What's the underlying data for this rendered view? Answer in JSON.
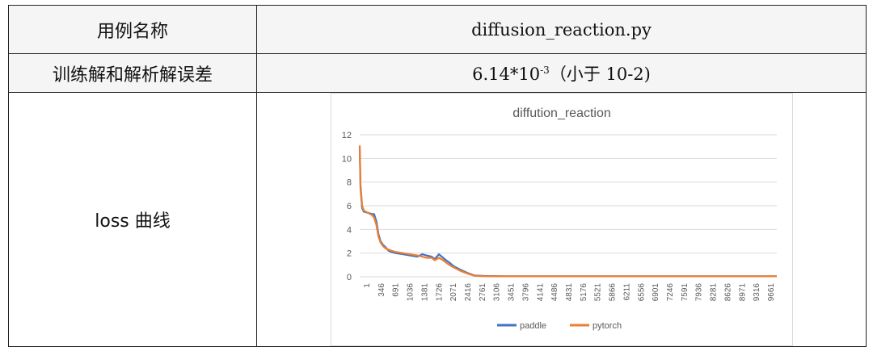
{
  "table": {
    "row1": {
      "label": "用例名称",
      "value": "diffusion_reaction.py"
    },
    "row2": {
      "label": "训练解和解析解误差",
      "value_base": "6.14*10",
      "value_exp": "-3",
      "value_tail": "（小于 10-2)"
    },
    "row3": {
      "label": "loss 曲线"
    }
  },
  "chart_data": {
    "type": "line",
    "title": "diffution_reaction",
    "ylim": [
      0,
      12
    ],
    "y_ticks": [
      "0",
      "2",
      "4",
      "6",
      "8",
      "10",
      "12"
    ],
    "x_ticks": [
      "1",
      "346",
      "691",
      "1036",
      "1381",
      "1726",
      "2071",
      "2416",
      "2761",
      "3106",
      "3451",
      "3796",
      "4141",
      "4486",
      "4831",
      "5176",
      "5521",
      "5866",
      "6211",
      "6556",
      "6901",
      "7246",
      "7591",
      "7936",
      "8281",
      "8626",
      "8971",
      "9316",
      "9661"
    ],
    "xlim": [
      1,
      10000
    ],
    "grid": true,
    "legend_position": "bottom",
    "series": [
      {
        "name": "paddle",
        "color": "#4472C4",
        "x": [
          1,
          20,
          60,
          100,
          200,
          300,
          346,
          400,
          450,
          500,
          560,
          620,
          691,
          760,
          860,
          1036,
          1200,
          1381,
          1500,
          1600,
          1726,
          1800,
          1900,
          2000,
          2071,
          2150,
          2250,
          2416,
          2600,
          2761,
          3000,
          3451,
          4141,
          5176,
          6211,
          7246,
          8281,
          9316,
          10000
        ],
        "y": [
          10.9,
          7.5,
          5.8,
          5.5,
          5.4,
          5.3,
          5.3,
          4.7,
          3.6,
          3.0,
          2.7,
          2.5,
          2.2,
          2.1,
          2.0,
          1.9,
          1.8,
          1.7,
          1.9,
          1.8,
          1.7,
          1.5,
          1.9,
          1.6,
          1.4,
          1.2,
          0.9,
          0.6,
          0.3,
          0.1,
          0.07,
          0.05,
          0.05,
          0.04,
          0.04,
          0.04,
          0.04,
          0.04,
          0.04
        ]
      },
      {
        "name": "pytorch",
        "color": "#ED7D31",
        "x": [
          1,
          20,
          60,
          100,
          200,
          300,
          346,
          400,
          450,
          500,
          560,
          620,
          691,
          760,
          860,
          1036,
          1200,
          1381,
          1500,
          1600,
          1726,
          1800,
          1900,
          2000,
          2071,
          2150,
          2250,
          2416,
          2600,
          2761,
          3000,
          3451,
          4141,
          5176,
          6211,
          7246,
          8281,
          9316,
          10000
        ],
        "y": [
          11.1,
          7.8,
          6.0,
          5.6,
          5.4,
          5.2,
          5.0,
          4.4,
          3.4,
          2.9,
          2.6,
          2.4,
          2.3,
          2.2,
          2.1,
          2.0,
          1.9,
          1.8,
          1.7,
          1.6,
          1.6,
          1.4,
          1.6,
          1.4,
          1.2,
          1.0,
          0.8,
          0.5,
          0.25,
          0.08,
          0.05,
          0.04,
          0.04,
          0.04,
          0.04,
          0.04,
          0.04,
          0.04,
          0.04
        ]
      }
    ]
  }
}
